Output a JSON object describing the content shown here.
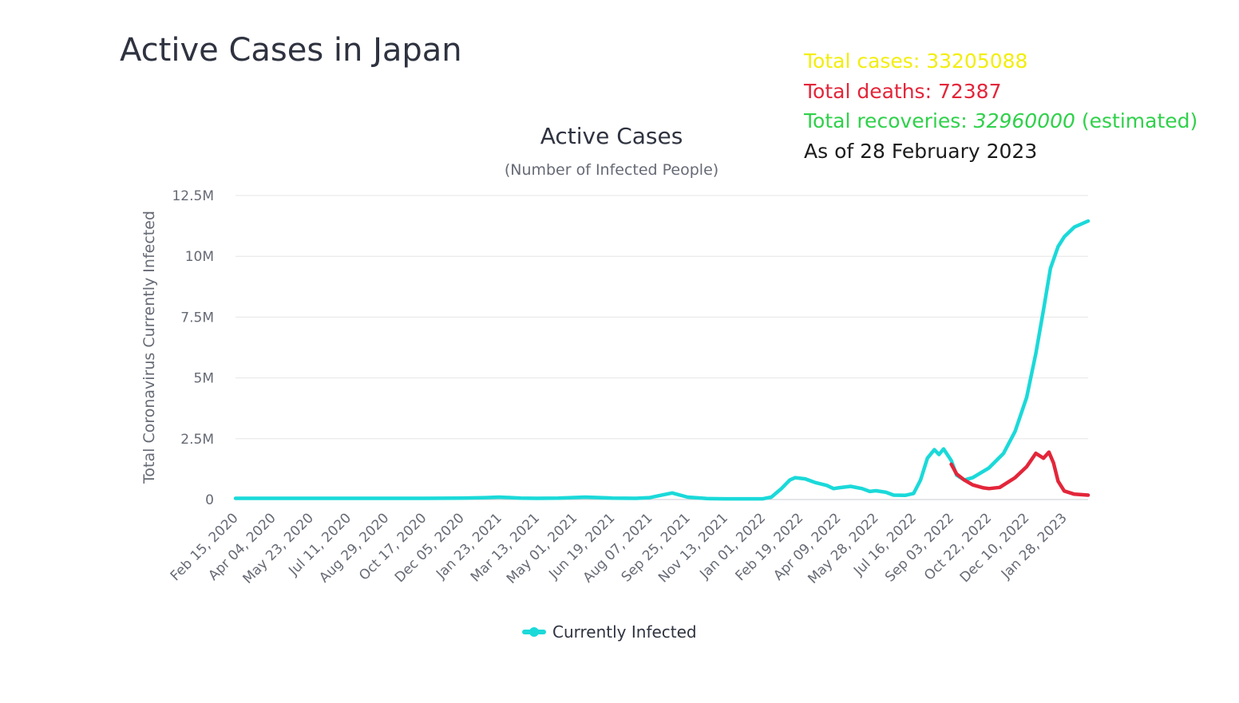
{
  "header": {
    "title": "Active Cases in Japan"
  },
  "stats": {
    "total_cases_label": "Total cases: ",
    "total_cases_value": "33205088",
    "total_deaths_label": "Total deaths: ",
    "total_deaths_value": "72387",
    "total_recoveries_label": "Total recoveries: ",
    "total_recoveries_value": "32960000",
    "total_recoveries_note": " (estimated)",
    "as_of": "As of 28 February 2023",
    "colors": {
      "cases": "#f2ee0c",
      "deaths": "#e3263a",
      "recoveries": "#2fd14a",
      "as_of": "#1c1c1c"
    }
  },
  "chart_data": {
    "type": "line",
    "title": "Active Cases",
    "subtitle": "(Number of Infected People)",
    "ylabel": "Total Coronavirus Currently Infected",
    "ylim": [
      0,
      12500000
    ],
    "yticks": [
      0,
      2500000,
      5000000,
      7500000,
      10000000,
      12500000
    ],
    "ytick_labels": [
      "0",
      "2.5M",
      "5M",
      "7.5M",
      "10M",
      "12.5M"
    ],
    "grid": true,
    "legend_position": "bottom-center",
    "xticks": [
      "Feb 15, 2020",
      "Apr 04, 2020",
      "May 23, 2020",
      "Jul 11, 2020",
      "Aug 29, 2020",
      "Oct 17, 2020",
      "Dec 05, 2020",
      "Jan 23, 2021",
      "Mar 13, 2021",
      "May 01, 2021",
      "Jun 19, 2021",
      "Aug 07, 2021",
      "Sep 25, 2021",
      "Nov 13, 2021",
      "Jan 01, 2022",
      "Feb 19, 2022",
      "Apr 09, 2022",
      "May 28, 2022",
      "Jul 16, 2022",
      "Sep 03, 2022",
      "Oct 22, 2022",
      "Dec 10, 2022",
      "Jan 28, 2023"
    ],
    "x_end": "Feb 28, 2023",
    "series": [
      {
        "name": "Currently Infected",
        "color": "#1bd9d9",
        "points": [
          [
            "Feb 15, 2020",
            50000
          ],
          [
            "Apr 04, 2020",
            50000
          ],
          [
            "May 23, 2020",
            50000
          ],
          [
            "Jul 11, 2020",
            50000
          ],
          [
            "Aug 29, 2020",
            50000
          ],
          [
            "Oct 17, 2020",
            50000
          ],
          [
            "Dec 05, 2020",
            60000
          ],
          [
            "Jan 06, 2021",
            80000
          ],
          [
            "Jan 23, 2021",
            100000
          ],
          [
            "Feb 20, 2021",
            60000
          ],
          [
            "Mar 13, 2021",
            50000
          ],
          [
            "Apr 10, 2021",
            60000
          ],
          [
            "May 15, 2021",
            100000
          ],
          [
            "Jun 19, 2021",
            60000
          ],
          [
            "Jul 20, 2021",
            50000
          ],
          [
            "Aug 07, 2021",
            80000
          ],
          [
            "Aug 25, 2021",
            200000
          ],
          [
            "Sep 05, 2021",
            270000
          ],
          [
            "Sep 25, 2021",
            100000
          ],
          [
            "Oct 20, 2021",
            40000
          ],
          [
            "Nov 13, 2021",
            30000
          ],
          [
            "Jan 01, 2022",
            30000
          ],
          [
            "Jan 12, 2022",
            100000
          ],
          [
            "Jan 25, 2022",
            450000
          ],
          [
            "Feb 05, 2022",
            800000
          ],
          [
            "Feb 12, 2022",
            900000
          ],
          [
            "Feb 25, 2022",
            850000
          ],
          [
            "Mar 10, 2022",
            700000
          ],
          [
            "Mar 25, 2022",
            580000
          ],
          [
            "Apr 03, 2022",
            450000
          ],
          [
            "Apr 09, 2022",
            480000
          ],
          [
            "Apr 25, 2022",
            540000
          ],
          [
            "May 10, 2022",
            450000
          ],
          [
            "May 20, 2022",
            330000
          ],
          [
            "May 28, 2022",
            360000
          ],
          [
            "Jun 10, 2022",
            300000
          ],
          [
            "Jun 20, 2022",
            180000
          ],
          [
            "Jul 05, 2022",
            170000
          ],
          [
            "Jul 16, 2022",
            250000
          ],
          [
            "Jul 25, 2022",
            800000
          ],
          [
            "Aug 03, 2022",
            1700000
          ],
          [
            "Aug 12, 2022",
            2050000
          ],
          [
            "Aug 18, 2022",
            1850000
          ],
          [
            "Aug 24, 2022",
            2080000
          ],
          [
            "Sep 03, 2022",
            1600000
          ],
          [
            "Sep 10, 2022",
            1000000
          ],
          [
            "Sep 20, 2022",
            800000
          ],
          [
            "Oct 01, 2022",
            900000
          ],
          [
            "Oct 22, 2022",
            1300000
          ],
          [
            "Nov 10, 2022",
            1900000
          ],
          [
            "Nov 25, 2022",
            2800000
          ],
          [
            "Dec 10, 2022",
            4200000
          ],
          [
            "Dec 22, 2022",
            6000000
          ],
          [
            "Jan 01, 2023",
            7800000
          ],
          [
            "Jan 10, 2023",
            9500000
          ],
          [
            "Jan 20, 2023",
            10400000
          ],
          [
            "Jan 28, 2023",
            10800000
          ],
          [
            "Feb 10, 2023",
            11200000
          ],
          [
            "Feb 28, 2023",
            11450000
          ]
        ]
      },
      {
        "color": "#e3263a",
        "points": [
          [
            "Sep 03, 2022",
            1450000
          ],
          [
            "Sep 10, 2022",
            1050000
          ],
          [
            "Sep 20, 2022",
            800000
          ],
          [
            "Oct 01, 2022",
            600000
          ],
          [
            "Oct 15, 2022",
            480000
          ],
          [
            "Oct 22, 2022",
            450000
          ],
          [
            "Nov 05, 2022",
            500000
          ],
          [
            "Nov 25, 2022",
            900000
          ],
          [
            "Dec 10, 2022",
            1350000
          ],
          [
            "Dec 22, 2022",
            1900000
          ],
          [
            "Jan 01, 2023",
            1700000
          ],
          [
            "Jan 08, 2023",
            1950000
          ],
          [
            "Jan 14, 2023",
            1500000
          ],
          [
            "Jan 20, 2023",
            750000
          ],
          [
            "Jan 28, 2023",
            350000
          ],
          [
            "Feb 10, 2023",
            220000
          ],
          [
            "Feb 28, 2023",
            180000
          ]
        ]
      }
    ]
  }
}
